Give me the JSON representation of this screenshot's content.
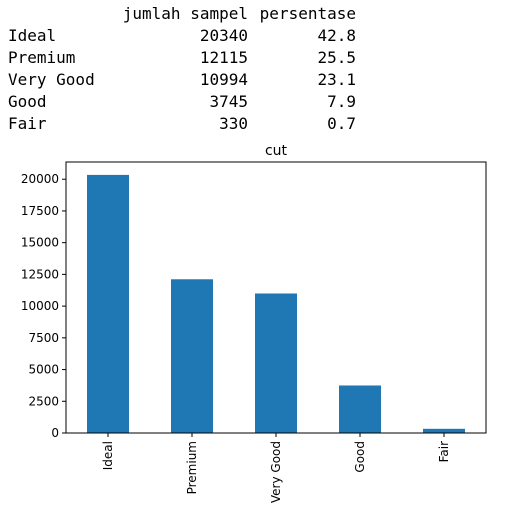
{
  "table": {
    "columns": [
      "jumlah sampel",
      "persentase"
    ],
    "rows": [
      {
        "index": "Ideal",
        "jumlah_sampel": "20340",
        "persentase": "42.8"
      },
      {
        "index": "Premium",
        "jumlah_sampel": "12115",
        "persentase": "25.5"
      },
      {
        "index": "Very Good",
        "jumlah_sampel": "10994",
        "persentase": "23.1"
      },
      {
        "index": "Good",
        "jumlah_sampel": "3745",
        "persentase": "7.9"
      },
      {
        "index": "Fair",
        "jumlah_sampel": "330",
        "persentase": "0.7"
      }
    ]
  },
  "chart_data": {
    "type": "bar",
    "title": "cut",
    "categories": [
      "Ideal",
      "Premium",
      "Very Good",
      "Good",
      "Fair"
    ],
    "values": [
      20340,
      12115,
      10994,
      3745,
      330
    ],
    "xlabel": "",
    "ylabel": "",
    "ylim": [
      0,
      21357
    ],
    "yticks": [
      0,
      2500,
      5000,
      7500,
      10000,
      12500,
      15000,
      17500,
      20000
    ],
    "bar_color": "#1f77b4",
    "grid": false,
    "legend": "none"
  }
}
